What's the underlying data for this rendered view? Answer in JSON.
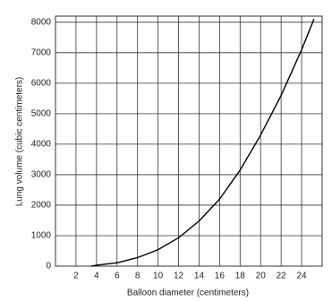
{
  "chart_data": {
    "type": "line",
    "x_label": "Balloon diameter (centimeters)",
    "y_label": "Lung volume (cubic centimeters)",
    "x": [
      3.5,
      4,
      6,
      8,
      10,
      12,
      14,
      16,
      18,
      20,
      22,
      24,
      25.2
    ],
    "series": [
      {
        "color": "#000000",
        "values": [
          0,
          30,
          110,
          280,
          540,
          930,
          1480,
          2200,
          3150,
          4300,
          5600,
          7100,
          8100
        ]
      }
    ],
    "xlim": [
      0,
      26
    ],
    "xticks": [
      2,
      4,
      6,
      8,
      10,
      12,
      14,
      16,
      18,
      20,
      22,
      24
    ],
    "ylim": [
      0,
      8200
    ],
    "yticks": [
      0,
      1000,
      2000,
      3000,
      4000,
      5000,
      6000,
      7000,
      8000
    ],
    "grid": true
  }
}
